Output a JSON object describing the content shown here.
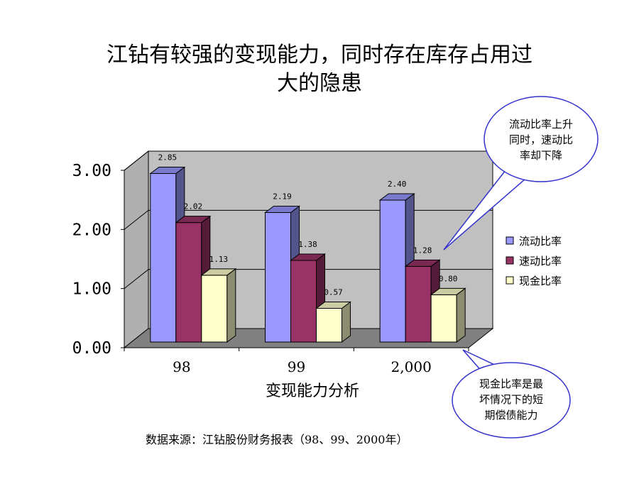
{
  "slide": {
    "title_line1": "江钻有较强的变现能力，同时存在库存占用过",
    "title_line2": "大的隐患",
    "source": "数据来源：江钻股份财务报表（98、99、2000年）"
  },
  "callouts": {
    "top": [
      "流动比率上升",
      "同时，速动比",
      "率却下降"
    ],
    "bottom": [
      "现金比率是最",
      "坏情况下的短",
      "期偿债能力"
    ]
  },
  "colors": {
    "series": [
      "#9999FF",
      "#993366",
      "#FFFFCC"
    ],
    "wall": "#C0C0C0",
    "floor": "#808080",
    "callout_border": "#3333CC"
  },
  "chart_data": {
    "type": "bar",
    "categories": [
      "98",
      "99",
      "2,000"
    ],
    "series": [
      {
        "name": "流动比率",
        "values": [
          2.85,
          2.19,
          2.4
        ]
      },
      {
        "name": "速动比率",
        "values": [
          2.02,
          1.38,
          1.28
        ]
      },
      {
        "name": "现金比率",
        "values": [
          1.13,
          0.57,
          0.8
        ]
      }
    ],
    "value_labels": [
      [
        "2.85",
        "2.19",
        "2.40"
      ],
      [
        "2.02",
        "1.38",
        "1.28"
      ],
      [
        "1.13",
        "0.57",
        "0.80"
      ]
    ],
    "y_ticks": [
      "0.00",
      "1.00",
      "2.00",
      "3.00"
    ],
    "ylim": [
      0,
      3
    ],
    "xlabel": "变现能力分析",
    "ylabel": "",
    "grid": true,
    "legend_position": "right",
    "style": "3d-clustered-column"
  }
}
